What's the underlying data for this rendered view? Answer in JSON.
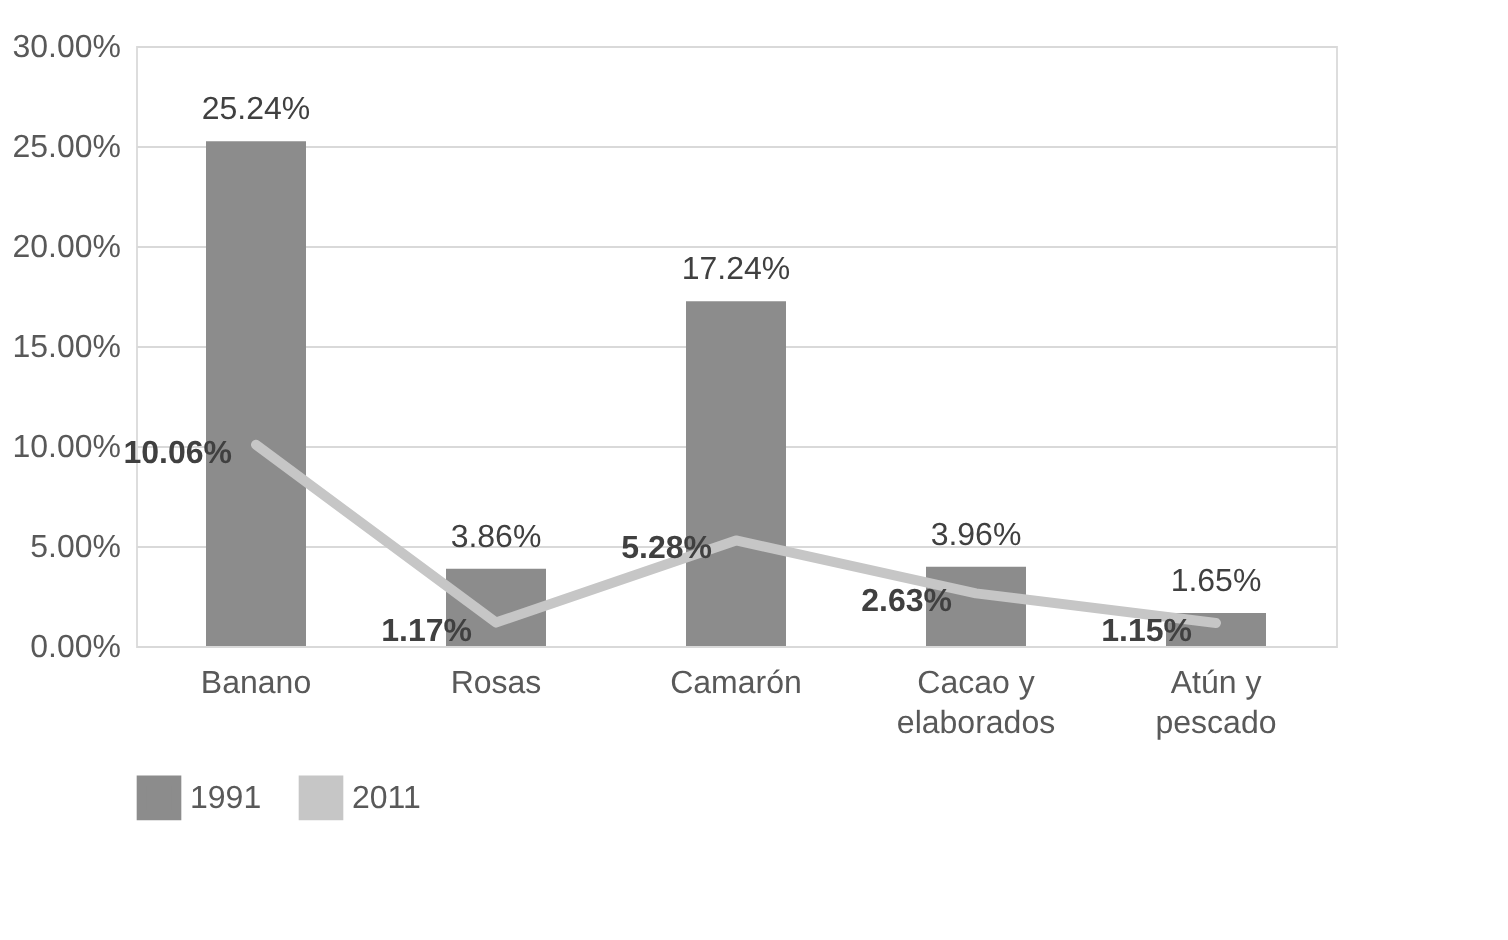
{
  "chart_data": {
    "type": "bar",
    "categories": [
      "Banano",
      "Rosas",
      "Camarón",
      "Cacao y elaborados",
      "Atún y pescado"
    ],
    "series": [
      {
        "name": "1991",
        "color": "#8c8c8c",
        "values": [
          25.24,
          3.86,
          17.24,
          3.96,
          1.65
        ],
        "value_labels": [
          "25.24%",
          "3.86%",
          "17.24%",
          "3.96%",
          "1.65%"
        ]
      },
      {
        "name": "2011",
        "type": "line",
        "color": "#c6c6c6",
        "values": [
          10.06,
          1.17,
          5.28,
          2.63,
          1.15
        ],
        "value_labels": [
          "10.06%",
          "1.17%",
          "5.28%",
          "2.63%",
          "1.15%"
        ]
      }
    ],
    "ylim": [
      0,
      30
    ],
    "yticks": [
      {
        "value": 0,
        "label": "0.00%"
      },
      {
        "value": 5,
        "label": "5.00%"
      },
      {
        "value": 10,
        "label": "10.00%"
      },
      {
        "value": 15,
        "label": "15.00%"
      },
      {
        "value": 20,
        "label": "20.00%"
      },
      {
        "value": 25,
        "label": "25.00%"
      },
      {
        "value": 30,
        "label": "30.00%"
      }
    ],
    "grid": "y",
    "legend": "bottom",
    "marker": "none",
    "line_style": "solid"
  }
}
